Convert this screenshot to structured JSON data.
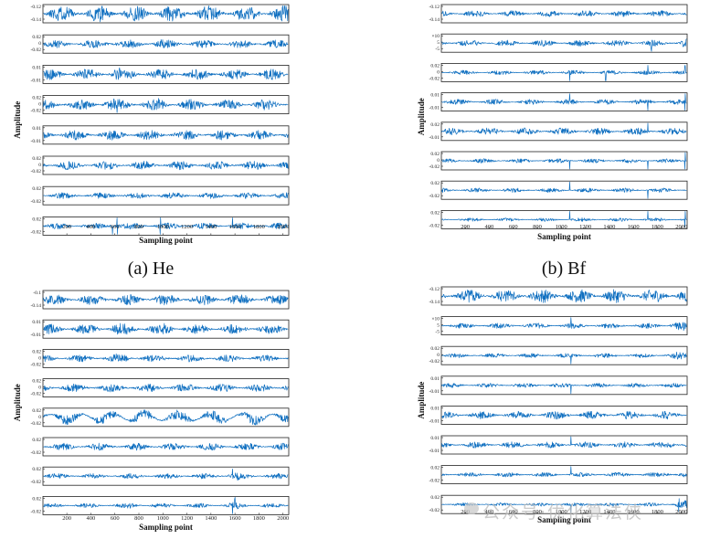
{
  "chart_data": [
    {
      "type": "line",
      "panel_label": "(a) He",
      "xlabel": "Sampling point",
      "ylabel": "Amplitude",
      "xlim": [
        1,
        2048
      ],
      "x_ticks": [
        200,
        400,
        600,
        800,
        1000,
        1200,
        1400,
        1600,
        1800,
        2000
      ],
      "color": "#0f6fc0",
      "series": [
        {
          "ylim": [
            -0.15,
            -0.1
          ],
          "y_ticks": [
            "-0.12",
            "-0.14"
          ],
          "amplitude": 0.9,
          "spikes": [],
          "bursts": [
            [
              0,
              2048,
              1.0
            ]
          ],
          "seed": 11
        },
        {
          "ylim": [
            -0.04,
            0.04
          ],
          "y_ticks": [
            "0.02",
            "0",
            "-0.02"
          ],
          "amplitude": 0.45,
          "spikes": [],
          "bursts": [
            [
              520,
              620,
              1.6
            ],
            [
              940,
              1000,
              1.4
            ]
          ],
          "seed": 12
        },
        {
          "ylim": [
            -0.03,
            0.03
          ],
          "y_ticks": [
            "0.01",
            "-0.01"
          ],
          "amplitude": 0.6,
          "spikes": [],
          "bursts": [
            [
              500,
              640,
              1.4
            ]
          ],
          "seed": 13
        },
        {
          "ylim": [
            -0.04,
            0.04
          ],
          "y_ticks": [
            "0.02",
            "0",
            "-0.02"
          ],
          "amplitude": 0.6,
          "spikes": [],
          "bursts": [
            [
              500,
              620,
              1.5
            ],
            [
              950,
              1000,
              1.3
            ]
          ],
          "seed": 14
        },
        {
          "ylim": [
            -0.03,
            0.03
          ],
          "y_ticks": [
            "0.01",
            "-0.01"
          ],
          "amplitude": 0.55,
          "spikes": [],
          "bursts": [
            [
              0,
              2048,
              1.0
            ]
          ],
          "seed": 15
        },
        {
          "ylim": [
            -0.04,
            0.04
          ],
          "y_ticks": [
            "0.02",
            "0",
            "-0.02"
          ],
          "amplitude": 0.5,
          "spikes": [],
          "bursts": [
            [
              0,
              2048,
              1.0
            ]
          ],
          "seed": 16
        },
        {
          "ylim": [
            -0.04,
            0.04
          ],
          "y_ticks": [
            "0.02",
            "-0.02"
          ],
          "amplitude": 0.35,
          "spikes": [],
          "bursts": [
            [
              580,
              640,
              1.4
            ],
            [
              960,
              1000,
              1.4
            ]
          ],
          "seed": 17
        },
        {
          "ylim": [
            -0.04,
            0.04
          ],
          "y_ticks": [
            "0.02",
            "-0.02"
          ],
          "amplitude": 0.35,
          "spikes": [
            580,
            620,
            980,
            1580
          ],
          "bursts": [
            [
              540,
              640,
              1.6
            ]
          ],
          "seed": 18
        }
      ]
    },
    {
      "type": "line",
      "panel_label": "(b) Bf",
      "xlabel": "Sampling point",
      "ylabel": "Amplitude",
      "xlim": [
        1,
        2048
      ],
      "x_ticks": [
        200,
        400,
        600,
        800,
        1000,
        1200,
        1400,
        1600,
        1800,
        2000
      ],
      "color": "#0f6fc0",
      "series": [
        {
          "ylim": [
            -0.15,
            -0.11
          ],
          "y_ticks": [
            "-0.12",
            "-0.14"
          ],
          "amplitude": 0.35,
          "spikes": [],
          "bursts": [
            [
              0,
              2048,
              1.0
            ]
          ],
          "seed": 21
        },
        {
          "ylim": [
            -0.006,
            0.006
          ],
          "y_ticks": [
            "×10",
            "5",
            "-5"
          ],
          "amplitude": 0.35,
          "spikes": [
            1750
          ],
          "bursts": [
            [
              2000,
              2048,
              1.8
            ]
          ],
          "seed": 22
        },
        {
          "ylim": [
            -0.04,
            0.04
          ],
          "y_ticks": [
            "0.02",
            "0",
            "-0.02"
          ],
          "amplitude": 0.25,
          "spikes": [
            1070,
            1370,
            1720,
            2030
          ],
          "bursts": [
            [
              0,
              2048,
              1.0
            ]
          ],
          "seed": 23
        },
        {
          "ylim": [
            -0.03,
            0.03
          ],
          "y_ticks": [
            "0.01",
            "-0.01"
          ],
          "amplitude": 0.3,
          "spikes": [
            1070,
            1720,
            2030
          ],
          "bursts": [
            [
              0,
              2048,
              1.0
            ]
          ],
          "seed": 24
        },
        {
          "ylim": [
            -0.03,
            0.03
          ],
          "y_ticks": [
            "0.02",
            "-0.01"
          ],
          "amplitude": 0.4,
          "spikes": [
            1720
          ],
          "bursts": [
            [
              0,
              2048,
              1.0
            ]
          ],
          "seed": 25
        },
        {
          "ylim": [
            -0.04,
            0.04
          ],
          "y_ticks": [
            "0.02",
            "0",
            "-0.02"
          ],
          "amplitude": 0.25,
          "spikes": [
            1070,
            1720,
            2030
          ],
          "bursts": [
            [
              0,
              2048,
              1.0
            ]
          ],
          "seed": 26
        },
        {
          "ylim": [
            -0.04,
            0.04
          ],
          "y_ticks": [
            "0.02",
            "-0.02"
          ],
          "amplitude": 0.25,
          "spikes": [
            1070,
            1720
          ],
          "bursts": [
            [
              0,
              2048,
              1.0
            ]
          ],
          "seed": 27
        },
        {
          "ylim": [
            -0.04,
            0.04
          ],
          "y_ticks": [
            "0.02",
            "-0.02"
          ],
          "amplitude": 0.2,
          "spikes": [
            1070,
            1720,
            2030
          ],
          "bursts": [
            [
              0,
              2048,
              1.0
            ]
          ],
          "seed": 28
        }
      ]
    },
    {
      "type": "line",
      "panel_label": "",
      "xlabel": "Sampling point",
      "ylabel": "Amplitude",
      "xlim": [
        1,
        2048
      ],
      "x_ticks": [
        200,
        400,
        600,
        800,
        1000,
        1200,
        1400,
        1600,
        1800,
        2000
      ],
      "color": "#0f6fc0",
      "series": [
        {
          "ylim": [
            -0.15,
            -0.09
          ],
          "y_ticks": [
            "-0.1",
            "-0.14"
          ],
          "amplitude": 0.6,
          "spikes": [],
          "bursts": [
            [
              0,
              2048,
              1.0
            ]
          ],
          "seed": 31
        },
        {
          "ylim": [
            -0.03,
            0.03
          ],
          "y_ticks": [
            "0.01",
            "-0.01"
          ],
          "amplitude": 0.55,
          "spikes": [],
          "bursts": [
            [
              580,
              700,
              1.3
            ],
            [
              1000,
              1080,
              1.3
            ]
          ],
          "seed": 32
        },
        {
          "ylim": [
            -0.04,
            0.04
          ],
          "y_ticks": [
            "0.02",
            "0",
            "-0.02"
          ],
          "amplitude": 0.4,
          "spikes": [],
          "bursts": [
            [
              580,
              700,
              1.5
            ]
          ],
          "seed": 33
        },
        {
          "ylim": [
            -0.04,
            0.04
          ],
          "y_ticks": [
            "0.02",
            "0",
            "-0.02"
          ],
          "amplitude": 0.45,
          "spikes": [],
          "bursts": [
            [
              0,
              2048,
              1.0
            ]
          ],
          "seed": 34
        },
        {
          "ylim": [
            -0.04,
            0.04
          ],
          "y_ticks": [
            "0.02",
            "0",
            "-0.02"
          ],
          "amplitude": 0.55,
          "spikes": [],
          "bursts": [
            [
              0,
              2048,
              1.0
            ]
          ],
          "slow": 1.0,
          "seed": 35
        },
        {
          "ylim": [
            -0.04,
            0.04
          ],
          "y_ticks": [
            "0.02",
            "-0.02"
          ],
          "amplitude": 0.4,
          "spikes": [],
          "bursts": [
            [
              0,
              2048,
              1.0
            ]
          ],
          "seed": 36
        },
        {
          "ylim": [
            -0.04,
            0.04
          ],
          "y_ticks": [
            "0.02",
            "-0.02"
          ],
          "amplitude": 0.3,
          "spikes": [
            1580
          ],
          "bursts": [
            [
              1540,
              1640,
              1.6
            ]
          ],
          "seed": 37
        },
        {
          "ylim": [
            -0.04,
            0.04
          ],
          "y_ticks": [
            "0.02",
            "-0.02"
          ],
          "amplitude": 0.25,
          "spikes": [
            1580,
            1600
          ],
          "bursts": [
            [
              700,
              820,
              1.6
            ],
            [
              1540,
              1640,
              1.5
            ]
          ],
          "seed": 38
        }
      ]
    },
    {
      "type": "line",
      "panel_label": "",
      "xlabel": "Sampling point",
      "ylabel": "Amplitude",
      "xlim": [
        1,
        2048
      ],
      "x_ticks": [
        200,
        400,
        600,
        800,
        1000,
        1200,
        1400,
        1600,
        1800,
        2000
      ],
      "color": "#0f6fc0",
      "series": [
        {
          "ylim": [
            -0.15,
            -0.11
          ],
          "y_ticks": [
            "-0.12",
            "-0.14"
          ],
          "amplitude": 0.75,
          "spikes": [],
          "bursts": [
            [
              0,
              2048,
              1.0
            ]
          ],
          "seed": 41
        },
        {
          "ylim": [
            -0.006,
            0.006
          ],
          "y_ticks": [
            "×10",
            "5",
            "-5"
          ],
          "amplitude": 0.3,
          "spikes": [
            1080
          ],
          "bursts": [
            [
              1900,
              2048,
              1.8
            ]
          ],
          "seed": 42
        },
        {
          "ylim": [
            -0.04,
            0.04
          ],
          "y_ticks": [
            "0.02",
            "0",
            "-0.02"
          ],
          "amplitude": 0.25,
          "spikes": [
            1080
          ],
          "bursts": [
            [
              1900,
              2048,
              1.6
            ]
          ],
          "seed": 43
        },
        {
          "ylim": [
            -0.03,
            0.03
          ],
          "y_ticks": [
            "0.01",
            "-0.01"
          ],
          "amplitude": 0.25,
          "spikes": [
            1080
          ],
          "bursts": [
            [
              0,
              2048,
              1.0
            ]
          ],
          "seed": 44
        },
        {
          "ylim": [
            -0.03,
            0.03
          ],
          "y_ticks": [
            "0.01",
            "-0.01"
          ],
          "amplitude": 0.45,
          "spikes": [],
          "bursts": [
            [
              0,
              2048,
              1.0
            ]
          ],
          "seed": 45
        },
        {
          "ylim": [
            -0.03,
            0.03
          ],
          "y_ticks": [
            "0.01",
            "-0.01"
          ],
          "amplitude": 0.35,
          "spikes": [
            1080
          ],
          "bursts": [
            [
              1900,
              2048,
              1.5
            ]
          ],
          "seed": 46
        },
        {
          "ylim": [
            -0.04,
            0.04
          ],
          "y_ticks": [
            "0.02",
            "-0.02"
          ],
          "amplitude": 0.25,
          "spikes": [
            1080
          ],
          "bursts": [
            [
              1850,
              2048,
              1.8
            ]
          ],
          "seed": 47
        },
        {
          "ylim": [
            -0.04,
            0.04
          ],
          "y_ticks": [
            "0.02",
            "-0.02"
          ],
          "amplitude": 0.2,
          "spikes": [
            1080,
            1980
          ],
          "bursts": [
            [
              1950,
              2048,
              2.2
            ]
          ],
          "seed": 48
        }
      ]
    }
  ],
  "watermark": "公众号·优化算法侠"
}
